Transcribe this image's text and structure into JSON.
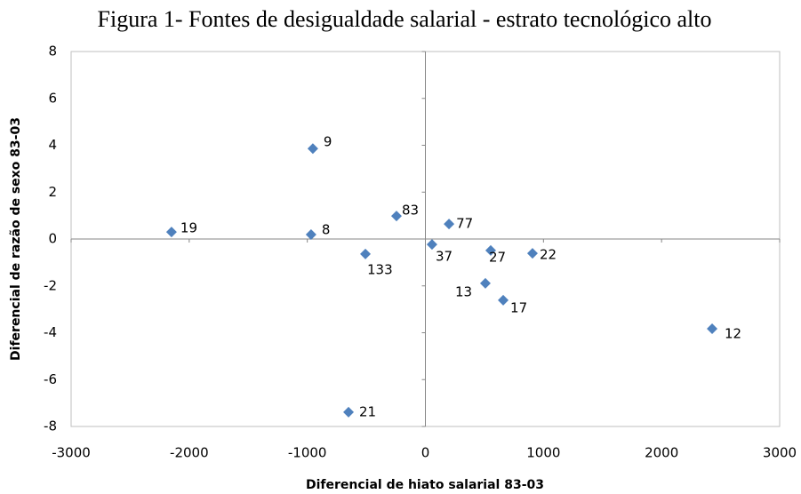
{
  "chart_data": {
    "type": "scatter",
    "title": "Figura 1- Fontes de desigualdade salarial - estrato tecnológico alto",
    "x_label": "Diferencial de hiato salarial 83-03",
    "y_label": "Diferencial de razão de sexo 83-03",
    "labels": [
      "19",
      "9",
      "8",
      "83",
      "133",
      "77",
      "37",
      "27",
      "22",
      "13",
      "17",
      "12",
      "21"
    ],
    "x": [
      -2150,
      -953,
      -968,
      -245,
      -508,
      200,
      56,
      553,
      907,
      508,
      659,
      2428,
      -651
    ],
    "y": [
      0.3,
      3.86,
      0.19,
      0.98,
      -0.64,
      0.64,
      -0.23,
      -0.49,
      -0.61,
      -1.89,
      -2.61,
      -3.83,
      -7.39
    ],
    "color": "#4f81bd",
    "xlim": [
      -3000,
      3000
    ],
    "xticks": [
      -3000,
      -2000,
      -1000,
      0,
      1000,
      2000,
      3000
    ],
    "ylim": [
      -8,
      8
    ],
    "yticks": [
      -8,
      -6,
      -4,
      -2,
      0,
      2,
      4,
      6,
      8
    ]
  }
}
